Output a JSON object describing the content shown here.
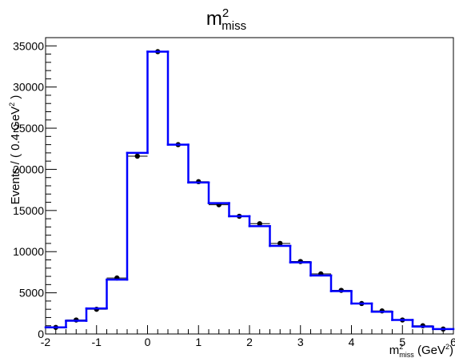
{
  "chart_data": {
    "type": "histogram",
    "title": {
      "base": "m",
      "sup": "2",
      "sub": "miss"
    },
    "xlabel": {
      "base": "m",
      "sup": "2",
      "sub": "miss",
      "unit_open": " (GeV",
      "unit_sup": "2",
      "unit_close": ")"
    },
    "ylabel": "Events / ( 0.4 GeV",
    "ylabel_sup": "2",
    "ylabel_close": " )",
    "xlim": [
      -2,
      6
    ],
    "ylim": [
      0,
      36000
    ],
    "x_ticks": [
      "-2",
      "-1",
      "0",
      "1",
      "2",
      "3",
      "4",
      "5",
      "6"
    ],
    "y_ticks": [
      "0",
      "5000",
      "10000",
      "15000",
      "20000",
      "25000",
      "30000",
      "35000"
    ],
    "bin_edges": [
      -2.0,
      -1.6,
      -1.2,
      -0.8,
      -0.4,
      0.0,
      0.4,
      0.8,
      1.2,
      1.6,
      2.0,
      2.4,
      2.8,
      3.2,
      3.6,
      4.0,
      4.4,
      4.8,
      5.2,
      5.6,
      6.0
    ],
    "series": [
      {
        "kind": "fit",
        "color": "#0000ff",
        "values": [
          800,
          1600,
          3100,
          6600,
          22000,
          34300,
          23000,
          18400,
          15900,
          14300,
          13100,
          10700,
          8700,
          7100,
          5200,
          3700,
          2700,
          1700,
          900,
          600
        ]
      },
      {
        "kind": "data",
        "color": "#000000",
        "values": [
          800,
          1700,
          3000,
          6800,
          21600,
          34300,
          23000,
          18500,
          15700,
          14300,
          13400,
          11000,
          8800,
          7300,
          5300,
          3700,
          2800,
          1700,
          1000,
          600
        ]
      }
    ]
  }
}
